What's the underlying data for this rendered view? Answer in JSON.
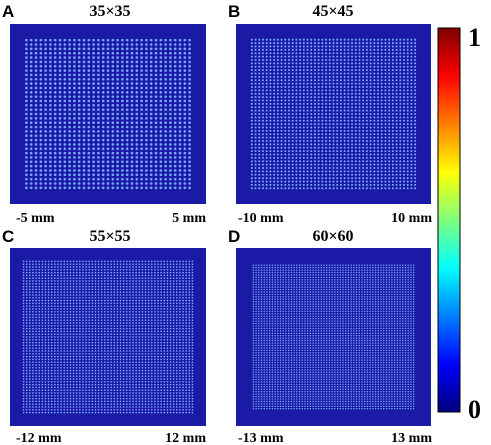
{
  "chart_data": [
    {
      "type": "heatmap",
      "panel": "A",
      "title": "35×35",
      "grid": [
        35,
        35
      ],
      "x_tick_labels": [
        "-5 mm",
        "5 mm"
      ],
      "value_range": [
        0,
        1
      ]
    },
    {
      "type": "heatmap",
      "panel": "B",
      "title": "45×45",
      "grid": [
        45,
        45
      ],
      "x_tick_labels": [
        "-10 mm",
        "10 mm"
      ],
      "value_range": [
        0,
        1
      ]
    },
    {
      "type": "heatmap",
      "panel": "C",
      "title": "55×55",
      "grid": [
        55,
        55
      ],
      "x_tick_labels": [
        "-12 mm",
        "12 mm"
      ],
      "value_range": [
        0,
        1
      ]
    },
    {
      "type": "heatmap",
      "panel": "D",
      "title": "60×60",
      "grid": [
        60,
        60
      ],
      "x_tick_labels": [
        "-13 mm",
        "13 mm"
      ],
      "value_range": [
        0,
        1
      ]
    }
  ],
  "colorbar": {
    "min_label": "0",
    "max_label": "1",
    "colormap": "jet",
    "colors": [
      "#00007f",
      "#0000ff",
      "#007fff",
      "#00ffff",
      "#7fff7f",
      "#ffff00",
      "#ff7f00",
      "#ff0000",
      "#7f0000"
    ]
  },
  "colors": {
    "background": "#1a1aa6",
    "dot": "#7aa6ff"
  }
}
